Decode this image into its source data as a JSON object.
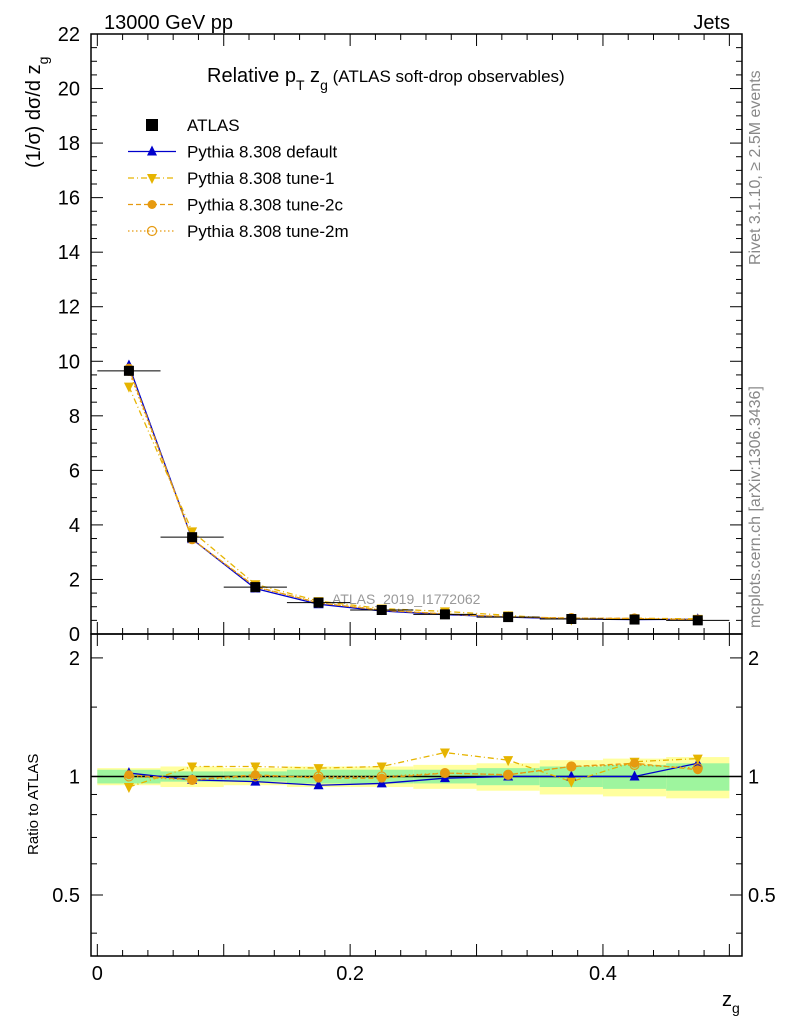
{
  "header": {
    "left": "13000 GeV pp",
    "right": "Jets"
  },
  "side_labels": {
    "rivet": "Rivet 3.1.10, ≥ 2.5M events",
    "mcplots": "mcplots.cern.ch [arXiv:1306.3436]"
  },
  "chart_data": {
    "type": "line",
    "title_main": "Relative p",
    "title_sub1": "T",
    "title_mid": " z",
    "title_sub2": "g",
    "title_suffix": " (ATLAS soft-drop observables)",
    "watermark": "ATLAS_2019_I1772062",
    "xlabel": "z",
    "xlabel_sub": "g",
    "ylabel": "(1/σ) dσ/d z",
    "ylabel_sub": "g",
    "ratio_ylabel": "Ratio to ATLAS",
    "xlim": [
      -0.005,
      0.51
    ],
    "ylim": [
      0,
      22
    ],
    "ratio_ylim": [
      0.35,
      2.3
    ],
    "x_ticks": [
      "0",
      "0.2",
      "0.4"
    ],
    "y_ticks": [
      "0",
      "2",
      "4",
      "6",
      "8",
      "10",
      "12",
      "14",
      "16",
      "18",
      "20",
      "22"
    ],
    "ratio_ticks": [
      "0.5",
      "1",
      "2"
    ],
    "x": [
      0.025,
      0.075,
      0.125,
      0.175,
      0.225,
      0.275,
      0.325,
      0.375,
      0.425,
      0.475
    ],
    "data": {
      "name": "ATLAS",
      "values": [
        9.65,
        3.55,
        1.72,
        1.15,
        0.88,
        0.72,
        0.62,
        0.55,
        0.53,
        0.5
      ],
      "band_green": [
        0.04,
        0.03,
        0.03,
        0.04,
        0.04,
        0.04,
        0.05,
        0.06,
        0.07,
        0.08
      ],
      "band_yellow": [
        0.05,
        0.06,
        0.05,
        0.06,
        0.06,
        0.07,
        0.08,
        0.1,
        0.11,
        0.12
      ]
    },
    "series": [
      {
        "name": "Pythia 8.308 default",
        "color": "#0000cc",
        "marker": "triangle-up",
        "line": "solid",
        "ratio": [
          1.02,
          0.98,
          0.97,
          0.95,
          0.96,
          0.99,
          1.0,
          1.0,
          1.0,
          1.08
        ]
      },
      {
        "name": "Pythia 8.308 tune-1",
        "color": "#e6b400",
        "marker": "triangle-down",
        "line": "dashdot",
        "ratio": [
          0.94,
          1.06,
          1.06,
          1.05,
          1.06,
          1.15,
          1.1,
          0.97,
          1.09,
          1.11
        ]
      },
      {
        "name": "Pythia 8.308 tune-2c",
        "color": "#e69a10",
        "marker": "circle",
        "line": "dashed",
        "ratio": [
          1.01,
          0.98,
          1.01,
          0.99,
          0.99,
          1.02,
          1.01,
          1.06,
          1.08,
          1.04
        ]
      },
      {
        "name": "Pythia 8.308 tune-2m",
        "color": "#e69a10",
        "marker": "circle-open",
        "line": "dotted",
        "ratio": [
          1.0,
          0.98,
          1.0,
          1.0,
          1.0,
          1.02,
          1.01,
          1.06,
          1.07,
          1.05
        ]
      }
    ],
    "legend_position": "top-left",
    "grid": false
  }
}
